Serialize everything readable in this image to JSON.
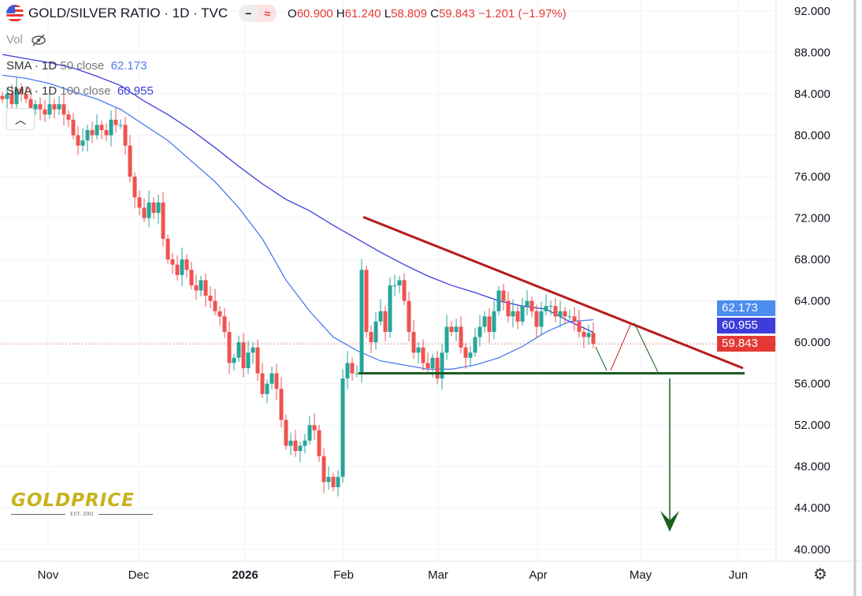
{
  "header": {
    "symbol": "GOLD/SILVER RATIO · 1D · TVC",
    "pill_left": "−",
    "pill_right": "≈",
    "o_label": "O",
    "o": "60.900",
    "h_label": "H",
    "h": "61.240",
    "l_label": "L",
    "l": "58.809",
    "c_label": "C",
    "c": "59.843",
    "change": "−1.201 (−1.97%)"
  },
  "vol": {
    "label": "Vol",
    "icon": "eye-off-icon"
  },
  "legend": [
    {
      "label": "SMA · 1D",
      "params": "50 close",
      "value": "62.173",
      "color": "#4c7cf0"
    },
    {
      "label": "SMA · 1D",
      "params": "100 close",
      "value": "60.955",
      "color": "#3d3ddb"
    }
  ],
  "collapse_icon": "chevron-up-icon",
  "price_labels": {
    "sma50": "62.173",
    "sma100": "60.955",
    "last": "59.843"
  },
  "logo": {
    "text": "GOLDPRICE",
    "sub": "EST. 2002"
  },
  "colors": {
    "up": "#26a69a",
    "down": "#ef5350",
    "sma50": "#4c7cf0",
    "sma100": "#3d3ddb",
    "trend": "#b71c1c",
    "support": "#1b5e20"
  },
  "chart_data": {
    "type": "candlestick",
    "title": "GOLD/SILVER RATIO · 1D · TVC",
    "y_ticks": [
      "92.000",
      "88.000",
      "84.000",
      "80.000",
      "76.000",
      "72.000",
      "68.000",
      "64.000",
      "60.000",
      "56.000",
      "52.000",
      "48.000",
      "44.000",
      "40.000"
    ],
    "ylim": [
      40,
      92
    ],
    "x_ticks": [
      {
        "label": "Nov",
        "bold": false
      },
      {
        "label": "Dec",
        "bold": false
      },
      {
        "label": "2026",
        "bold": true
      },
      {
        "label": "Feb",
        "bold": false
      },
      {
        "label": "Mar",
        "bold": false
      },
      {
        "label": "Apr",
        "bold": false
      },
      {
        "label": "May",
        "bold": false
      },
      {
        "label": "Jun",
        "bold": false
      }
    ],
    "grid": true,
    "closes": [
      83.5,
      84,
      83,
      84.5,
      84,
      83.5,
      82.5,
      83,
      82.5,
      82,
      83,
      82.5,
      83,
      82,
      81.5,
      80,
      79,
      79.5,
      80.5,
      80,
      81,
      80.5,
      80,
      81.5,
      81,
      81,
      79,
      76,
      74,
      73,
      72,
      73.5,
      72.5,
      73.5,
      70,
      68,
      67.5,
      66.5,
      68,
      67,
      65.5,
      65,
      66,
      64.5,
      64,
      63,
      62.5,
      61,
      58,
      58.5,
      60,
      57.5,
      59,
      59.5,
      57,
      55,
      56,
      57,
      55.5,
      52.5,
      50,
      50.5,
      49.5,
      50,
      50.5,
      52,
      51.5,
      49,
      46.5,
      47,
      46,
      47,
      56.5,
      58,
      57,
      57,
      67,
      61,
      60,
      62,
      63,
      61,
      65.5,
      65.5,
      66,
      64,
      61,
      59,
      59.5,
      58,
      57.5,
      58.5,
      56.5,
      59,
      61.5,
      61,
      61.5,
      59.5,
      58.5,
      59,
      60.5,
      61.5,
      62.5,
      61,
      63,
      65,
      64,
      62.5,
      63,
      62,
      63.5,
      64,
      63,
      61.5,
      63,
      63.5,
      63.5,
      62.5,
      63,
      62.5,
      62.5,
      62,
      61,
      60.5,
      60.9,
      59.843
    ],
    "sma50_every5": [
      85.8,
      85.5,
      85,
      84.2,
      83.5,
      82.5,
      81,
      79.5,
      77.5,
      75.5,
      73,
      70,
      66,
      63,
      60.5,
      59.2,
      58.2,
      57.8,
      57.4,
      57.4,
      57.8,
      58.5,
      59.6,
      61,
      62,
      62.173
    ],
    "sma100_every5": [
      87.8,
      87.4,
      87,
      86.5,
      85.7,
      84.8,
      83.3,
      82,
      80.5,
      78.8,
      77,
      75.3,
      73.8,
      72.7,
      71.3,
      70,
      68.7,
      67.5,
      66.4,
      65.5,
      64.8,
      64,
      63.5,
      63.2,
      62,
      60.955
    ],
    "last_price": 59.843,
    "annotations": {
      "resistance_from": 72.1,
      "resistance_to": 57.5,
      "support": 57.0,
      "target": 41.7
    }
  }
}
